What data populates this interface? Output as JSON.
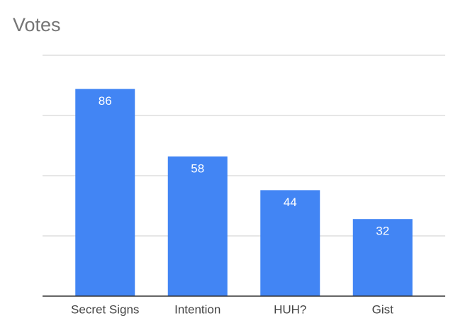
{
  "chart_data": {
    "type": "bar",
    "title": "Votes",
    "categories": [
      "Secret Signs",
      "Intention",
      "HUH?",
      "Gist"
    ],
    "values": [
      86,
      58,
      44,
      32
    ],
    "color": "#4285f4",
    "ylim": [
      0,
      100
    ],
    "yticks": [
      0,
      25,
      50,
      75,
      100
    ],
    "grid": true
  }
}
